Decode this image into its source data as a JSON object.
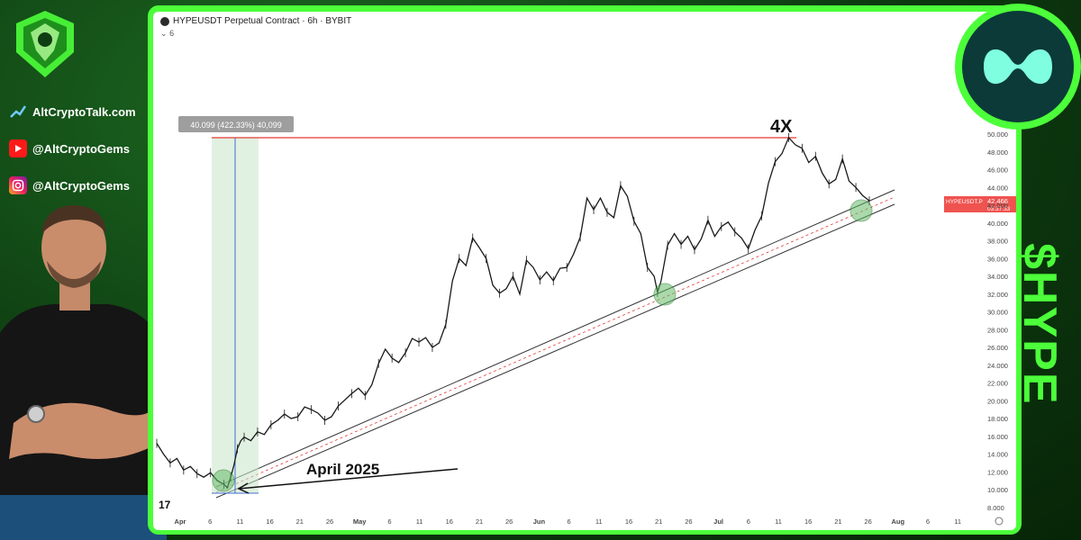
{
  "sidebar": {
    "site": "AltCryptoTalk.com",
    "youtube": "@AltCryptoGems",
    "instagram": "@AltCryptoGems"
  },
  "side_text": "$HYPE",
  "chart_header": {
    "title": "HYPEUSDT Perpetual Contract · 6h · BYBIT",
    "collapse": "6"
  },
  "colors": {
    "frame": "#4cff3a",
    "bg": "#0f3d12",
    "resistance": "#e53935",
    "measure": "#c8e6c9",
    "channel": "#333333",
    "price_tag": "#ef5350"
  },
  "chart_data": {
    "type": "line",
    "title": "HYPEUSDT Perpetual Contract · 6h · BYBIT",
    "xlabel": "",
    "ylabel": "",
    "x_ticks": [
      "Apr",
      "6",
      "11",
      "16",
      "21",
      "26",
      "May",
      "6",
      "11",
      "16",
      "21",
      "26",
      "Jun",
      "6",
      "11",
      "16",
      "21",
      "26",
      "Jul",
      "6",
      "11",
      "16",
      "21",
      "26",
      "Aug",
      "6",
      "11"
    ],
    "y_ticks": [
      "50.000",
      "48.000",
      "46.000",
      "44.000",
      "42.000",
      "40.000",
      "38.000",
      "36.000",
      "34.000",
      "32.000",
      "30.000",
      "28.000",
      "26.000",
      "24.000",
      "22.000",
      "20.000",
      "18.000",
      "16.000",
      "14.000",
      "12.000",
      "10.000",
      "8.000"
    ],
    "ylim": [
      8,
      50
    ],
    "series": [
      {
        "values": [
          [
            0,
            15.2
          ],
          [
            2,
            14.0
          ],
          [
            4,
            13.0
          ],
          [
            6,
            13.5
          ],
          [
            8,
            12.2
          ],
          [
            10,
            12.6
          ],
          [
            12,
            11.8
          ],
          [
            14,
            11.4
          ],
          [
            16,
            11.9
          ],
          [
            18,
            11.0
          ],
          [
            20,
            10.6
          ],
          [
            21,
            10.2
          ],
          [
            22,
            11.4
          ],
          [
            23,
            12.8
          ],
          [
            24,
            14.6
          ],
          [
            25,
            15.5
          ],
          [
            26,
            15.9
          ],
          [
            28,
            15.5
          ],
          [
            30,
            16.5
          ],
          [
            32,
            16.2
          ],
          [
            34,
            17.3
          ],
          [
            36,
            17.8
          ],
          [
            38,
            18.5
          ],
          [
            40,
            18.0
          ],
          [
            42,
            18.2
          ],
          [
            44,
            19.3
          ],
          [
            46,
            19.0
          ],
          [
            48,
            18.6
          ],
          [
            50,
            17.8
          ],
          [
            52,
            18.2
          ],
          [
            54,
            19.4
          ],
          [
            56,
            20.1
          ],
          [
            58,
            20.8
          ],
          [
            60,
            21.4
          ],
          [
            62,
            20.6
          ],
          [
            64,
            21.8
          ],
          [
            66,
            24.2
          ],
          [
            68,
            25.8
          ],
          [
            70,
            24.8
          ],
          [
            72,
            24.3
          ],
          [
            74,
            25.4
          ],
          [
            76,
            27.0
          ],
          [
            78,
            26.6
          ],
          [
            80,
            27.1
          ],
          [
            82,
            26.0
          ],
          [
            84,
            26.5
          ],
          [
            86,
            28.6
          ],
          [
            88,
            33.5
          ],
          [
            90,
            36.0
          ],
          [
            92,
            35.2
          ],
          [
            94,
            38.3
          ],
          [
            96,
            37.2
          ],
          [
            98,
            36.0
          ],
          [
            100,
            33.0
          ],
          [
            102,
            32.1
          ],
          [
            104,
            32.6
          ],
          [
            106,
            34.0
          ],
          [
            108,
            32.0
          ],
          [
            110,
            35.8
          ],
          [
            112,
            35.0
          ],
          [
            114,
            33.6
          ],
          [
            116,
            34.5
          ],
          [
            118,
            33.5
          ],
          [
            120,
            34.9
          ],
          [
            122,
            35.0
          ],
          [
            124,
            36.5
          ],
          [
            126,
            38.4
          ],
          [
            128,
            42.8
          ],
          [
            130,
            41.5
          ],
          [
            132,
            42.8
          ],
          [
            134,
            41.2
          ],
          [
            136,
            40.6
          ],
          [
            138,
            44.2
          ],
          [
            140,
            43.0
          ],
          [
            142,
            40.2
          ],
          [
            144,
            38.8
          ],
          [
            146,
            35.0
          ],
          [
            148,
            34.0
          ],
          [
            149,
            32.2
          ],
          [
            150,
            33.4
          ],
          [
            152,
            37.5
          ],
          [
            154,
            38.8
          ],
          [
            156,
            37.6
          ],
          [
            158,
            38.5
          ],
          [
            160,
            37.0
          ],
          [
            162,
            38.2
          ],
          [
            164,
            40.3
          ],
          [
            166,
            38.5
          ],
          [
            168,
            39.6
          ],
          [
            170,
            40.1
          ],
          [
            172,
            39.0
          ],
          [
            174,
            38.3
          ],
          [
            176,
            37.1
          ],
          [
            178,
            39.2
          ],
          [
            180,
            40.8
          ],
          [
            182,
            44.5
          ],
          [
            184,
            46.9
          ],
          [
            186,
            47.8
          ],
          [
            188,
            49.6
          ],
          [
            190,
            48.8
          ],
          [
            192,
            48.4
          ],
          [
            194,
            46.8
          ],
          [
            196,
            47.5
          ],
          [
            198,
            45.6
          ],
          [
            200,
            44.4
          ],
          [
            202,
            44.9
          ],
          [
            204,
            47.2
          ],
          [
            206,
            44.7
          ],
          [
            208,
            44.0
          ],
          [
            210,
            43.1
          ],
          [
            212,
            42.5
          ]
        ]
      }
    ],
    "measure_label": "40.099 (422.33%) 40,099",
    "annotations": [
      "4X",
      "April 2025"
    ],
    "price_tag": {
      "symbol": "HYPEUSDT.P",
      "value": "42.466",
      "countdown": "03:37:33"
    },
    "grid": false,
    "legend": "none"
  }
}
